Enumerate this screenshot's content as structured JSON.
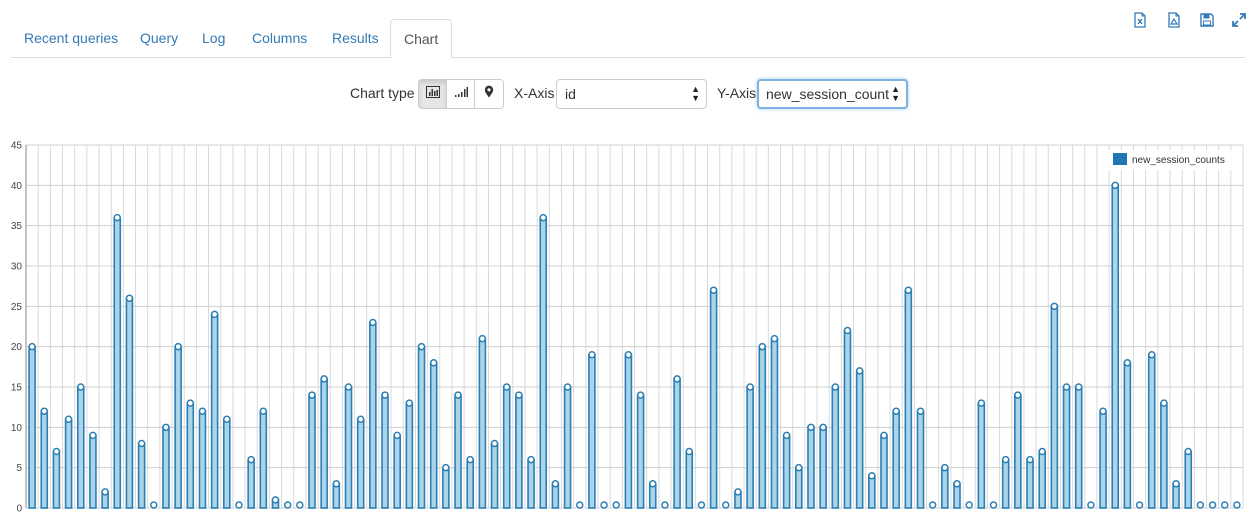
{
  "tabs": [
    {
      "label": "Recent queries",
      "active": false
    },
    {
      "label": "Query",
      "active": false
    },
    {
      "label": "Log",
      "active": false
    },
    {
      "label": "Columns",
      "active": false
    },
    {
      "label": "Results",
      "active": false
    },
    {
      "label": "Chart",
      "active": true
    }
  ],
  "toolbar": {
    "icons": [
      "excel-download-icon",
      "csv-download-icon",
      "save-icon",
      "fullscreen-icon"
    ],
    "accent": "#337ab7"
  },
  "controls": {
    "chart_type_label": "Chart type",
    "chart_type_options": [
      "bar-chart-icon",
      "line-chart-icon",
      "map-marker-icon"
    ],
    "chart_type_selected": "bar-chart-icon",
    "x_axis_label": "X-Axis",
    "x_axis_value": "id",
    "y_axis_label": "Y-Axis",
    "y_axis_value": "new_session_counts"
  },
  "chart_data": {
    "type": "bar",
    "legend": {
      "entries": [
        "new_session_counts"
      ],
      "placement": "top-right"
    },
    "grid": true,
    "ylim": [
      0,
      45
    ],
    "yticks": [
      0,
      5,
      10,
      15,
      20,
      25,
      30,
      35,
      40,
      45
    ],
    "color": "#1f77b4",
    "series": [
      {
        "name": "new_session_counts",
        "values": [
          20,
          12,
          7,
          11,
          15,
          9,
          2,
          36,
          26,
          8,
          0,
          10,
          20,
          13,
          12,
          24,
          11,
          0,
          6,
          12,
          1,
          0,
          0,
          14,
          16,
          3,
          15,
          11,
          23,
          14,
          9,
          13,
          20,
          18,
          5,
          14,
          6,
          21,
          8,
          15,
          14,
          6,
          36,
          3,
          15,
          0,
          19,
          0,
          0,
          19,
          14,
          3,
          0,
          16,
          7,
          0,
          27,
          0,
          2,
          15,
          20,
          21,
          9,
          5,
          10,
          10,
          15,
          22,
          17,
          4,
          9,
          12,
          27,
          12,
          0,
          5,
          3,
          0,
          13,
          0,
          6,
          14,
          6,
          7,
          25,
          15,
          15,
          0,
          12,
          40,
          18,
          0,
          19,
          13,
          3,
          7,
          0,
          0,
          0,
          0
        ]
      }
    ]
  }
}
